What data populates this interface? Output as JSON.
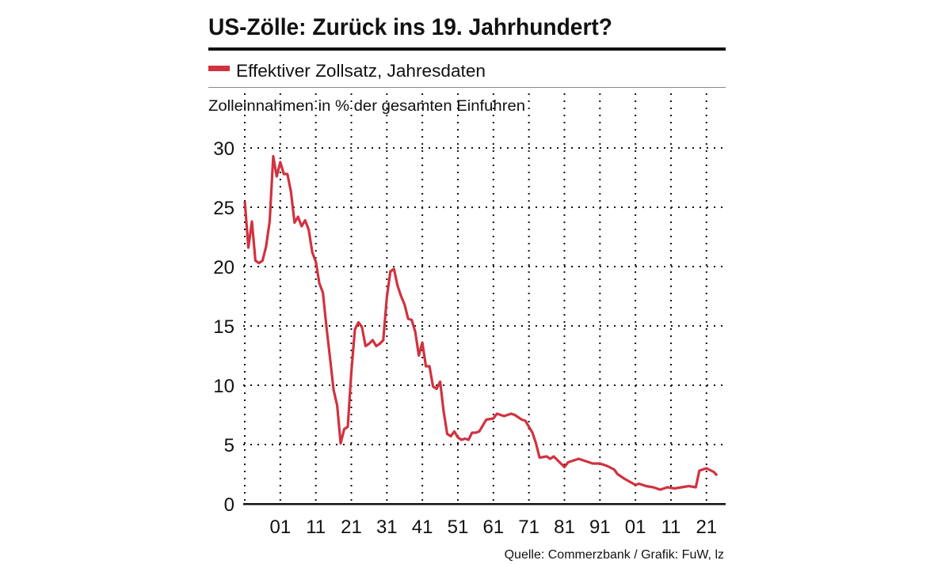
{
  "chart_data": {
    "type": "line",
    "title": "US-Zölle: Zurück ins 19. Jahrhundert?",
    "ylabel": "Zolleinnahmen in % der gesamten Einfuhren",
    "xlabel": "",
    "source": "Quelle: Commerzbank / Grafik: FuW, lz",
    "ylim": [
      0,
      30
    ],
    "xlim": [
      1891,
      2025
    ],
    "yticks": [
      0,
      5,
      10,
      15,
      20,
      25,
      30
    ],
    "xticks": [
      1901,
      1911,
      1921,
      1931,
      1941,
      1951,
      1961,
      1971,
      1981,
      1991,
      2001,
      2011,
      2021
    ],
    "xtick_labels": [
      "01",
      "11",
      "21",
      "31",
      "41",
      "51",
      "61",
      "71",
      "81",
      "91",
      "01",
      "11",
      "21"
    ],
    "grid": true,
    "legend_position": "top-left",
    "series": [
      {
        "name": "Effektiver Zollsatz, Jahresdaten",
        "color": "#d1323f",
        "x": [
          1891,
          1892,
          1893,
          1894,
          1895,
          1896,
          1897,
          1898,
          1899,
          1900,
          1901,
          1902,
          1903,
          1904,
          1905,
          1906,
          1907,
          1908,
          1909,
          1910,
          1911,
          1912,
          1913,
          1914,
          1915,
          1916,
          1917,
          1918,
          1919,
          1920,
          1921,
          1922,
          1923,
          1924,
          1925,
          1926,
          1927,
          1928,
          1929,
          1930,
          1931,
          1932,
          1933,
          1934,
          1935,
          1936,
          1937,
          1938,
          1939,
          1940,
          1941,
          1942,
          1943,
          1944,
          1945,
          1946,
          1947,
          1948,
          1949,
          1950,
          1951,
          1952,
          1953,
          1954,
          1955,
          1956,
          1957,
          1958,
          1959,
          1961,
          1962,
          1964,
          1966,
          1967,
          1969,
          1970,
          1972,
          1973,
          1974,
          1976,
          1977,
          1978,
          1981,
          1982,
          1984,
          1985,
          1987,
          1989,
          1991,
          1993,
          1995,
          1996,
          1998,
          2001,
          2002,
          2004,
          2006,
          2008,
          2010,
          2012,
          2014,
          2016,
          2018,
          2019,
          2021,
          2023,
          2024
        ],
        "y": [
          25.5,
          21.6,
          23.8,
          20.5,
          20.3,
          20.5,
          21.7,
          23.8,
          29.3,
          27.6,
          28.8,
          27.8,
          27.8,
          26.3,
          23.7,
          24.2,
          23.4,
          23.9,
          23.1,
          21.2,
          20.4,
          18.6,
          17.8,
          14.9,
          12.3,
          9.6,
          8.3,
          5.1,
          6.3,
          6.5,
          11.1,
          14.7,
          15.3,
          14.9,
          13.3,
          13.5,
          13.8,
          13.3,
          13.5,
          13.8,
          17.4,
          19.6,
          19.8,
          18.4,
          17.5,
          16.8,
          15.6,
          15.5,
          14.5,
          12.5,
          13.6,
          11.6,
          11.6,
          9.9,
          9.7,
          10.3,
          7.8,
          5.9,
          5.7,
          6.1,
          5.6,
          5.4,
          5.5,
          5.4,
          6.0,
          6.0,
          6.1,
          6.6,
          7.1,
          7.2,
          7.6,
          7.4,
          7.6,
          7.5,
          7.1,
          7.0,
          6.0,
          5.1,
          3.9,
          4.0,
          3.8,
          4.0,
          3.1,
          3.5,
          3.7,
          3.8,
          3.6,
          3.4,
          3.4,
          3.2,
          2.9,
          2.5,
          2.1,
          1.6,
          1.7,
          1.5,
          1.4,
          1.2,
          1.4,
          1.3,
          1.4,
          1.5,
          1.4,
          2.8,
          3.0,
          2.7,
          2.4
        ]
      }
    ]
  }
}
